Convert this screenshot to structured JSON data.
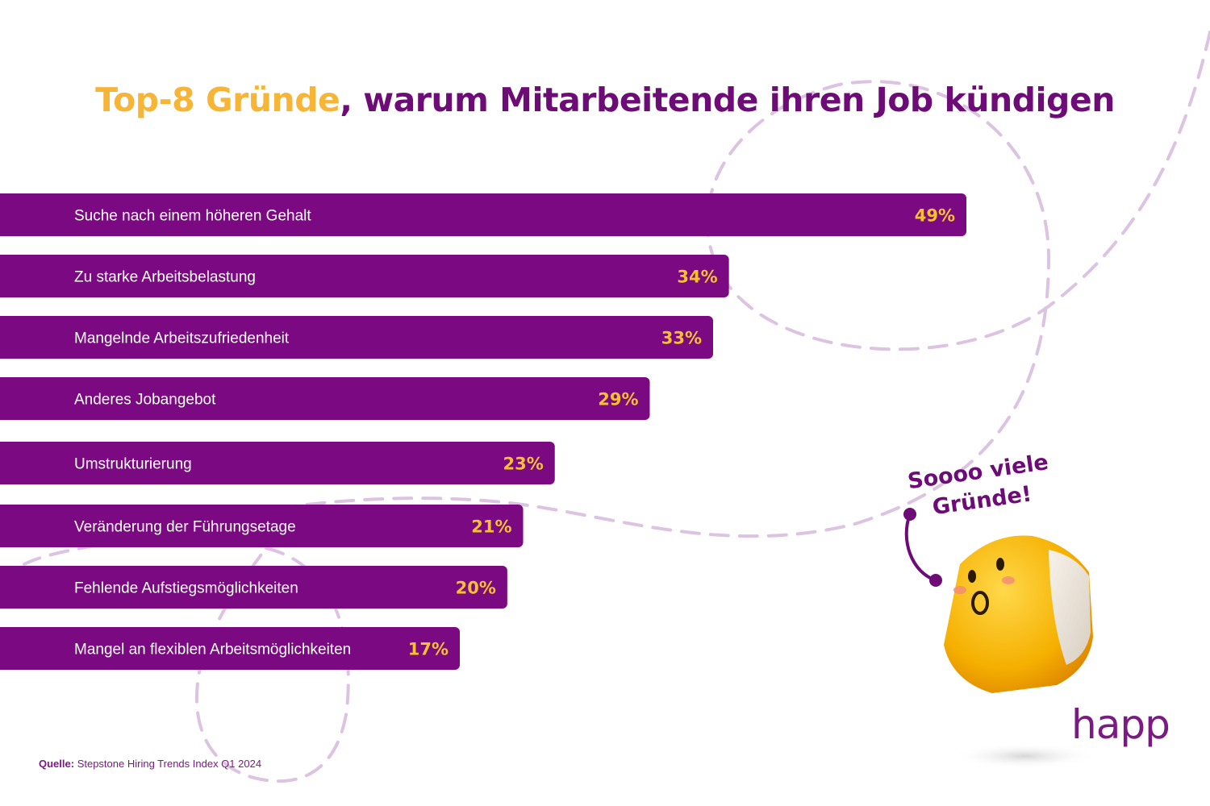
{
  "title": {
    "highlight": "Top-8 Gründe",
    "rest": ", warum Mitarbeitende ihren Job kündigen"
  },
  "chart_data": {
    "type": "bar",
    "orientation": "horizontal",
    "categories": [
      "Suche nach einem höheren Gehalt",
      "Zu starke Arbeitsbelastung",
      "Mangelnde Arbeitszufriedenheit",
      "Anderes Jobangebot",
      "Umstrukturierung",
      "Veränderung der Führungsetage",
      "Fehlende Aufstiegsmöglichkeiten",
      "Mangel an flexiblen Arbeitsmöglichkeiten"
    ],
    "values": [
      49,
      34,
      33,
      29,
      23,
      21,
      20,
      17
    ],
    "value_labels": [
      "49%",
      "34%",
      "33%",
      "29%",
      "23%",
      "21%",
      "20%",
      "17%"
    ],
    "unit": "%",
    "grid": false,
    "legend": "none"
  },
  "callout": {
    "line1": "Soooo viele",
    "line2": "Gründe!"
  },
  "source": {
    "label": "Quelle:",
    "text": " Stepstone Hiring Trends Index Q1 2024"
  },
  "logo": {
    "text": "happ"
  },
  "colors": {
    "bar": "#7B0A82",
    "bar_label": "#ffffff",
    "value_label": "#F7C12E",
    "title_highlight": "#F7B538",
    "title_rest": "#6E0C77",
    "decoration": "#DCC3E2",
    "mascot": "#F7B400"
  },
  "icons": [
    "surprised-cube-mascot-icon",
    "happ-logo-icon"
  ]
}
